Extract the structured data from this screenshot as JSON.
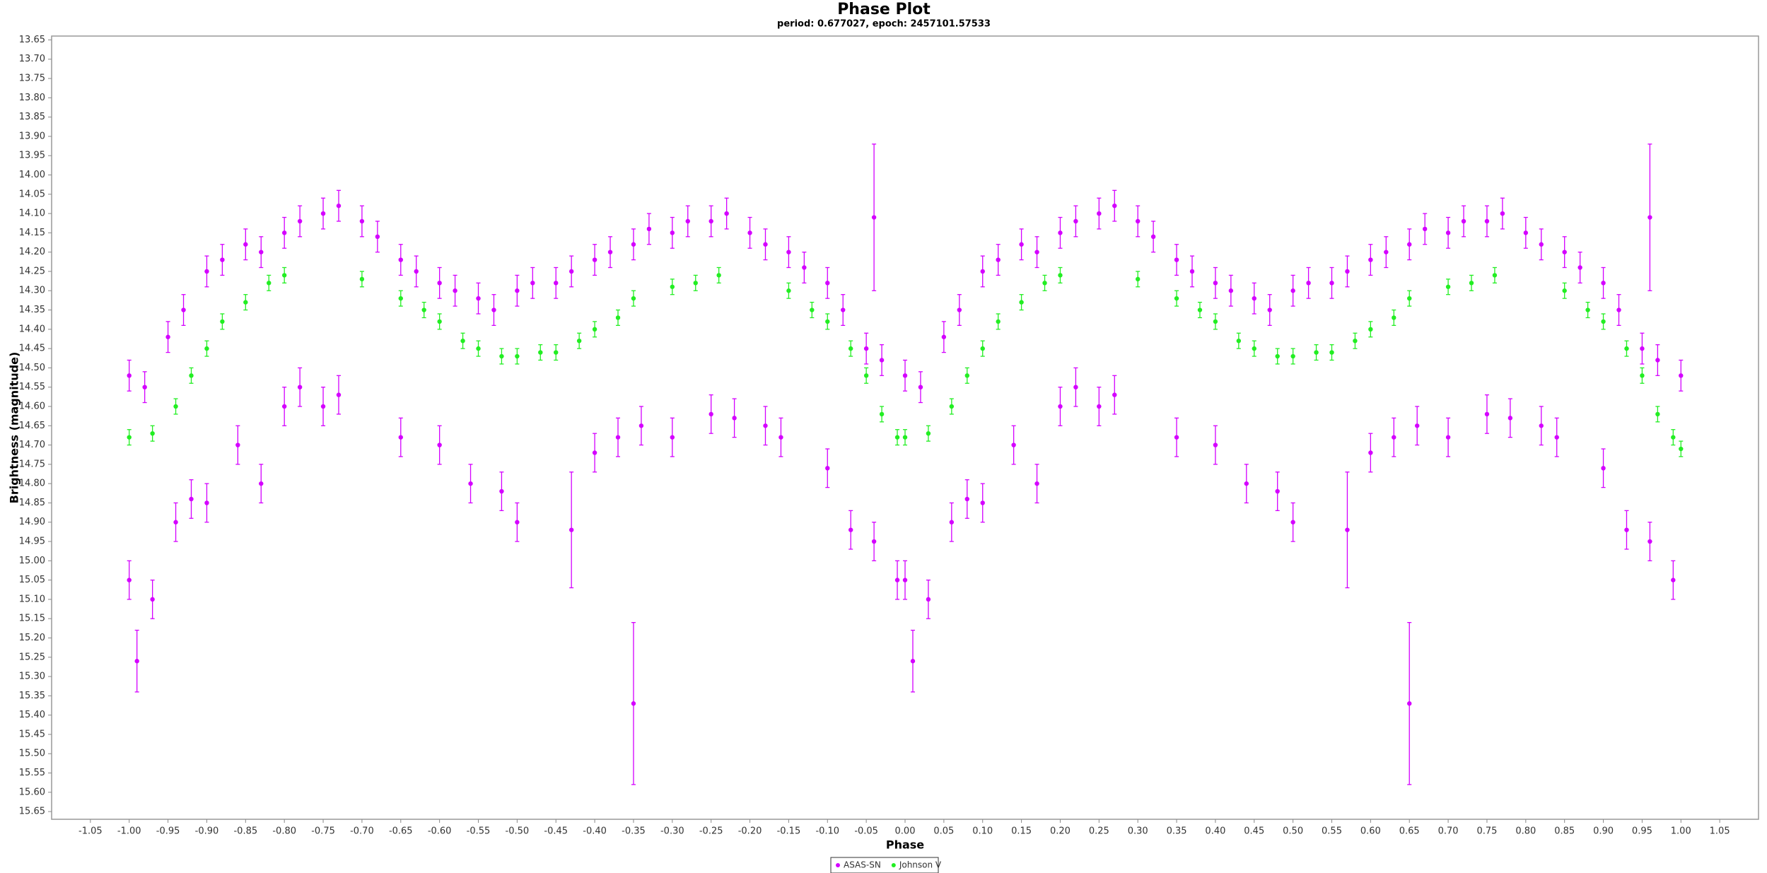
{
  "chart_data": {
    "type": "scatter",
    "title": "Phase Plot",
    "subtitle": "period: 0.677027, epoch: 2457101.57533",
    "x_label": "Phase",
    "y_label": "Brightness (magnitude)",
    "xlim": [
      -1.1,
      1.1
    ],
    "ylim": [
      13.64,
      15.67
    ],
    "y_inverted": true,
    "xticks": [
      -1.05,
      {
        "value": -1,
        "label": "-1.00"
      },
      -0.95,
      {
        "value": -0.9,
        "label": "-0.90"
      },
      -0.85,
      {
        "value": -0.8,
        "label": "-0.80"
      },
      -0.75,
      {
        "value": -0.7,
        "label": "-0.70"
      },
      -0.65,
      {
        "value": -0.6,
        "label": "-0.60"
      },
      -0.55,
      {
        "value": -0.5,
        "label": "-0.50"
      },
      -0.45,
      {
        "value": -0.4,
        "label": "-0.40"
      },
      -0.35,
      {
        "value": -0.3,
        "label": "-0.30"
      },
      -0.25,
      {
        "value": -0.2,
        "label": "-0.20"
      },
      -0.15,
      {
        "value": -0.1,
        "label": "-0.10"
      },
      -0.05,
      {
        "value": 0,
        "label": "0.00"
      },
      0.05,
      {
        "value": 0.1,
        "label": "0.10"
      },
      0.15,
      {
        "value": 0.2,
        "label": "0.20"
      },
      0.25,
      {
        "value": 0.3,
        "label": "0.30"
      },
      0.35,
      {
        "value": 0.4,
        "label": "0.40"
      },
      0.45,
      {
        "value": 0.5,
        "label": "0.50"
      },
      0.55,
      {
        "value": 0.6,
        "label": "0.60"
      },
      0.65,
      {
        "value": 0.7,
        "label": "0.70"
      },
      0.75,
      {
        "value": 0.8,
        "label": "0.80"
      },
      0.85,
      {
        "value": 0.9,
        "label": "0.90"
      },
      0.95,
      {
        "value": 1,
        "label": "1.00"
      },
      1.05
    ],
    "yticks": [
      13.65,
      {
        "value": 13.7,
        "label": "13.70"
      },
      13.75,
      {
        "value": 13.8,
        "label": "13.80"
      },
      13.85,
      {
        "value": 13.9,
        "label": "13.90"
      },
      13.95,
      {
        "value": 14,
        "label": "14.00"
      },
      14.05,
      {
        "value": 14.1,
        "label": "14.10"
      },
      14.15,
      {
        "value": 14.2,
        "label": "14.20"
      },
      14.25,
      {
        "value": 14.3,
        "label": "14.30"
      },
      14.35,
      {
        "value": 14.4,
        "label": "14.40"
      },
      14.45,
      {
        "value": 14.5,
        "label": "14.50"
      },
      14.55,
      {
        "value": 14.6,
        "label": "14.60"
      },
      14.65,
      {
        "value": 14.7,
        "label": "14.70"
      },
      14.75,
      {
        "value": 14.8,
        "label": "14.80"
      },
      14.85,
      {
        "value": 14.9,
        "label": "14.90"
      },
      14.95,
      {
        "value": 15,
        "label": "15.00"
      },
      15.05,
      {
        "value": 15.1,
        "label": "15.10"
      },
      15.15,
      {
        "value": 15.2,
        "label": "15.20"
      },
      15.25,
      {
        "value": 15.3,
        "label": "15.30"
      },
      15.35,
      {
        "value": 15.4,
        "label": "15.40"
      },
      15.45,
      {
        "value": 15.5,
        "label": "15.50"
      },
      15.55,
      {
        "value": 15.6,
        "label": "15.60"
      },
      15.65
    ],
    "series": [
      {
        "name": "ASAS-SN",
        "color": "#d400ff",
        "x": [
          -1,
          -0.98,
          -0.95,
          -0.93,
          -0.9,
          -0.88,
          -0.85,
          -0.83,
          -0.8,
          -0.78,
          -0.75,
          -0.73,
          -0.7,
          -0.68,
          -0.65,
          -0.63,
          -0.6,
          -0.58,
          -0.55,
          -0.53,
          -0.5,
          -0.48,
          -0.45,
          -0.43,
          -0.4,
          -0.38,
          -0.35,
          -0.33,
          -0.3,
          -0.28,
          -0.25,
          -0.23,
          -0.2,
          -0.18,
          -0.15,
          -0.13,
          -0.1,
          -0.08,
          -0.05,
          -0.03,
          -1,
          -0.99,
          -0.97,
          -0.94,
          -0.92,
          -0.9,
          -0.86,
          -0.83,
          -0.8,
          -0.78,
          -0.75,
          -0.73,
          -0.65,
          -0.6,
          -0.56,
          -0.52,
          -0.5,
          -0.43,
          -0.4,
          -0.37,
          -0.35,
          -0.34,
          -0.3,
          -0.25,
          -0.22,
          -0.18,
          -0.16,
          -0.1,
          -0.07,
          -0.04,
          -0.01,
          -0.04,
          0,
          0.02,
          0.05,
          0.07,
          0.1,
          0.12,
          0.15,
          0.17,
          0.2,
          0.22,
          0.25,
          0.27,
          0.3,
          0.32,
          0.35,
          0.37,
          0.4,
          0.42,
          0.45,
          0.47,
          0.5,
          0.52,
          0.55,
          0.57,
          0.6,
          0.62,
          0.65,
          0.67,
          0.7,
          0.72,
          0.75,
          0.77,
          0.8,
          0.82,
          0.85,
          0.87,
          0.9,
          0.92,
          0.95,
          0.97,
          1,
          0,
          0.01,
          0.03,
          0.06,
          0.08,
          0.1,
          0.14,
          0.17,
          0.2,
          0.22,
          0.25,
          0.27,
          0.35,
          0.4,
          0.44,
          0.48,
          0.5,
          0.57,
          0.6,
          0.63,
          0.65,
          0.66,
          0.7,
          0.75,
          0.78,
          0.82,
          0.84,
          0.9,
          0.93,
          0.96,
          0.99,
          0.96
        ],
        "values": [
          14.52,
          14.55,
          14.42,
          14.35,
          14.25,
          14.22,
          14.18,
          14.2,
          14.15,
          14.12,
          14.1,
          14.08,
          14.12,
          14.16,
          14.22,
          14.25,
          14.28,
          14.3,
          14.32,
          14.35,
          14.3,
          14.28,
          14.28,
          14.25,
          14.22,
          14.2,
          14.18,
          14.14,
          14.15,
          14.12,
          14.12,
          14.1,
          14.15,
          14.18,
          14.2,
          14.24,
          14.28,
          14.35,
          14.45,
          14.48,
          15.05,
          15.26,
          15.1,
          14.9,
          14.84,
          14.85,
          14.7,
          14.8,
          14.6,
          14.55,
          14.6,
          14.57,
          14.68,
          14.7,
          14.8,
          14.82,
          14.9,
          14.92,
          14.72,
          14.68,
          15.37,
          14.65,
          14.68,
          14.62,
          14.63,
          14.65,
          14.68,
          14.76,
          14.92,
          14.95,
          15.05,
          14.11,
          14.52,
          14.55,
          14.42,
          14.35,
          14.25,
          14.22,
          14.18,
          14.2,
          14.15,
          14.12,
          14.1,
          14.08,
          14.12,
          14.16,
          14.22,
          14.25,
          14.28,
          14.3,
          14.32,
          14.35,
          14.3,
          14.28,
          14.28,
          14.25,
          14.22,
          14.2,
          14.18,
          14.14,
          14.15,
          14.12,
          14.12,
          14.1,
          14.15,
          14.18,
          14.2,
          14.24,
          14.28,
          14.35,
          14.45,
          14.48,
          14.52,
          15.05,
          15.26,
          15.1,
          14.9,
          14.84,
          14.85,
          14.7,
          14.8,
          14.6,
          14.55,
          14.6,
          14.57,
          14.68,
          14.7,
          14.8,
          14.82,
          14.9,
          14.92,
          14.72,
          14.68,
          15.37,
          14.65,
          14.68,
          14.62,
          14.63,
          14.65,
          14.68,
          14.76,
          14.92,
          14.95,
          15.05,
          14.11
        ],
        "errors": [
          0.04,
          0.04,
          0.04,
          0.04,
          0.04,
          0.04,
          0.04,
          0.04,
          0.04,
          0.04,
          0.04,
          0.04,
          0.04,
          0.04,
          0.04,
          0.04,
          0.04,
          0.04,
          0.04,
          0.04,
          0.04,
          0.04,
          0.04,
          0.04,
          0.04,
          0.04,
          0.04,
          0.04,
          0.04,
          0.04,
          0.04,
          0.04,
          0.04,
          0.04,
          0.04,
          0.04,
          0.04,
          0.04,
          0.04,
          0.04,
          0.05,
          0.08,
          0.05,
          0.05,
          0.05,
          0.05,
          0.05,
          0.05,
          0.05,
          0.05,
          0.05,
          0.05,
          0.05,
          0.05,
          0.05,
          0.05,
          0.05,
          0.15,
          0.05,
          0.05,
          0.21,
          0.05,
          0.05,
          0.05,
          0.05,
          0.05,
          0.05,
          0.05,
          0.05,
          0.05,
          0.05,
          0.19,
          0.04,
          0.04,
          0.04,
          0.04,
          0.04,
          0.04,
          0.04,
          0.04,
          0.04,
          0.04,
          0.04,
          0.04,
          0.04,
          0.04,
          0.04,
          0.04,
          0.04,
          0.04,
          0.04,
          0.04,
          0.04,
          0.04,
          0.04,
          0.04,
          0.04,
          0.04,
          0.04,
          0.04,
          0.04,
          0.04,
          0.04,
          0.04,
          0.04,
          0.04,
          0.04,
          0.04,
          0.04,
          0.04,
          0.04,
          0.04,
          0.04,
          0.05,
          0.08,
          0.05,
          0.05,
          0.05,
          0.05,
          0.05,
          0.05,
          0.05,
          0.05,
          0.05,
          0.05,
          0.05,
          0.05,
          0.05,
          0.05,
          0.05,
          0.15,
          0.05,
          0.05,
          0.21,
          0.05,
          0.05,
          0.05,
          0.05,
          0.05,
          0.05,
          0.05,
          0.05,
          0.05,
          0.05,
          0.19
        ]
      },
      {
        "name": "Johnson V",
        "color": "#22ee22",
        "x": [
          -1,
          -0.97,
          -0.94,
          -0.92,
          -0.9,
          -0.88,
          -0.85,
          -0.82,
          -0.8,
          -0.7,
          -0.65,
          -0.62,
          -0.6,
          -0.57,
          -0.55,
          -0.52,
          -0.5,
          -0.47,
          -0.45,
          -0.42,
          -0.4,
          -0.37,
          -0.35,
          -0.3,
          -0.27,
          -0.24,
          -0.15,
          -0.12,
          -0.1,
          -0.07,
          -0.05,
          -0.03,
          -0.01,
          0,
          0.03,
          0.06,
          0.08,
          0.1,
          0.12,
          0.15,
          0.18,
          0.2,
          0.3,
          0.35,
          0.38,
          0.4,
          0.43,
          0.45,
          0.48,
          0.5,
          0.53,
          0.55,
          0.58,
          0.6,
          0.63,
          0.65,
          0.7,
          0.73,
          0.76,
          0.85,
          0.88,
          0.9,
          0.93,
          0.95,
          0.97,
          0.99,
          1
        ],
        "values": [
          14.68,
          14.67,
          14.6,
          14.52,
          14.45,
          14.38,
          14.33,
          14.28,
          14.26,
          14.27,
          14.32,
          14.35,
          14.38,
          14.43,
          14.45,
          14.47,
          14.47,
          14.46,
          14.46,
          14.43,
          14.4,
          14.37,
          14.32,
          14.29,
          14.28,
          14.26,
          14.3,
          14.35,
          14.38,
          14.45,
          14.52,
          14.62,
          14.68,
          14.68,
          14.67,
          14.6,
          14.52,
          14.45,
          14.38,
          14.33,
          14.28,
          14.26,
          14.27,
          14.32,
          14.35,
          14.38,
          14.43,
          14.45,
          14.47,
          14.47,
          14.46,
          14.46,
          14.43,
          14.4,
          14.37,
          14.32,
          14.29,
          14.28,
          14.26,
          14.3,
          14.35,
          14.38,
          14.45,
          14.52,
          14.62,
          14.68,
          14.71
        ],
        "errors": [
          0.02,
          0.02,
          0.02,
          0.02,
          0.02,
          0.02,
          0.02,
          0.02,
          0.02,
          0.02,
          0.02,
          0.02,
          0.02,
          0.02,
          0.02,
          0.02,
          0.02,
          0.02,
          0.02,
          0.02,
          0.02,
          0.02,
          0.02,
          0.02,
          0.02,
          0.02,
          0.02,
          0.02,
          0.02,
          0.02,
          0.02,
          0.02,
          0.02,
          0.02,
          0.02,
          0.02,
          0.02,
          0.02,
          0.02,
          0.02,
          0.02,
          0.02,
          0.02,
          0.02,
          0.02,
          0.02,
          0.02,
          0.02,
          0.02,
          0.02,
          0.02,
          0.02,
          0.02,
          0.02,
          0.02,
          0.02,
          0.02,
          0.02,
          0.02,
          0.02,
          0.02,
          0.02,
          0.02,
          0.02,
          0.02,
          0.02,
          0.02
        ]
      }
    ]
  }
}
